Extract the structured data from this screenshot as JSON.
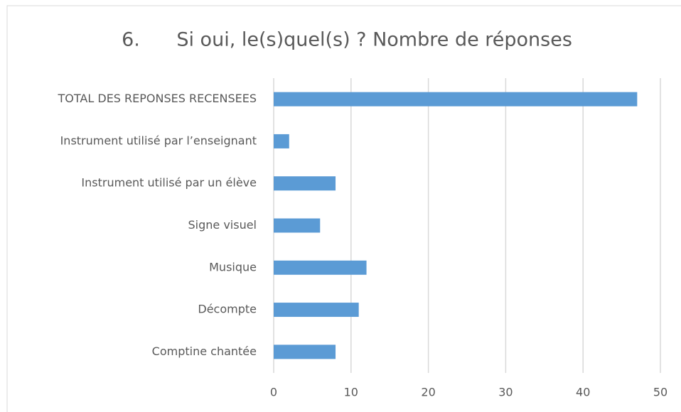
{
  "chart_data": {
    "type": "bar",
    "orientation": "horizontal",
    "title": "6.      Si oui, le(s)quel(s) ? Nombre de réponses",
    "categories": [
      "TOTAL DES REPONSES RECENSEES",
      "Instrument utilisé par l’enseignant",
      "Instrument utilisé par un élève",
      "Signe visuel",
      "Musique",
      "Décompte",
      "Comptine chantée"
    ],
    "values": [
      47,
      2,
      8,
      6,
      12,
      11,
      8
    ],
    "color": "#5b9bd5",
    "xlim": [
      0,
      50
    ],
    "xticks": [
      0,
      10,
      20,
      30,
      40,
      50
    ],
    "grid": true
  }
}
